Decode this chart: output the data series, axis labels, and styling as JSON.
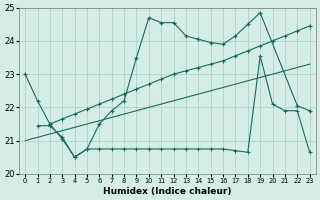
{
  "xlabel": "Humidex (Indice chaleur)",
  "bg_color": "#d4ede6",
  "grid_color": "#a8cfc4",
  "line_color": "#1a6b5a",
  "xlim": [
    -0.5,
    23.5
  ],
  "ylim": [
    20,
    25
  ],
  "xticks": [
    0,
    1,
    2,
    3,
    4,
    5,
    6,
    7,
    8,
    9,
    10,
    11,
    12,
    13,
    14,
    15,
    16,
    17,
    18,
    19,
    20,
    21,
    22,
    23
  ],
  "yticks": [
    20,
    21,
    22,
    23,
    24,
    25
  ],
  "line1_x": [
    0,
    1,
    2,
    3,
    4,
    5,
    6,
    7,
    8,
    9,
    10,
    11,
    12,
    13,
    14,
    15,
    16,
    17,
    18,
    19,
    22,
    23
  ],
  "line1_y": [
    23.0,
    22.2,
    21.5,
    21.05,
    20.5,
    20.75,
    21.5,
    21.9,
    22.2,
    23.5,
    24.7,
    24.55,
    24.55,
    24.15,
    24.05,
    23.95,
    23.9,
    24.15,
    24.5,
    24.85,
    22.05,
    21.9
  ],
  "line2_x": [
    2,
    3,
    4,
    5,
    6,
    7,
    8,
    9,
    10,
    11,
    12,
    13,
    14,
    15,
    16,
    17,
    18,
    19,
    20,
    21,
    22,
    23
  ],
  "line2_y": [
    21.5,
    21.65,
    21.8,
    21.95,
    22.1,
    22.25,
    22.4,
    22.55,
    22.7,
    22.85,
    23.0,
    23.1,
    23.2,
    23.3,
    23.4,
    23.55,
    23.7,
    23.85,
    24.0,
    24.15,
    24.3,
    24.45
  ],
  "line3_x": [
    0,
    1,
    2,
    3,
    4,
    5,
    6,
    7,
    8,
    9,
    10,
    11,
    12,
    13,
    14,
    15,
    16,
    17,
    18,
    19,
    20,
    21,
    22,
    23
  ],
  "line3_y": [
    21.0,
    21.1,
    21.2,
    21.3,
    21.4,
    21.5,
    21.6,
    21.7,
    21.8,
    21.9,
    22.0,
    22.1,
    22.2,
    22.3,
    22.4,
    22.5,
    22.6,
    22.7,
    22.8,
    22.9,
    23.0,
    23.1,
    23.2,
    23.3
  ],
  "line4_x": [
    1,
    2,
    3,
    4,
    5,
    6,
    7,
    8,
    9,
    10,
    11,
    12,
    13,
    14,
    15,
    16,
    17,
    18,
    19,
    20,
    21,
    22,
    23
  ],
  "line4_y": [
    21.45,
    21.45,
    21.1,
    20.5,
    20.75,
    20.75,
    20.75,
    20.75,
    20.75,
    20.75,
    20.75,
    20.75,
    20.75,
    20.75,
    20.75,
    20.75,
    20.7,
    20.65,
    23.55,
    22.1,
    21.9,
    21.9,
    20.65
  ]
}
